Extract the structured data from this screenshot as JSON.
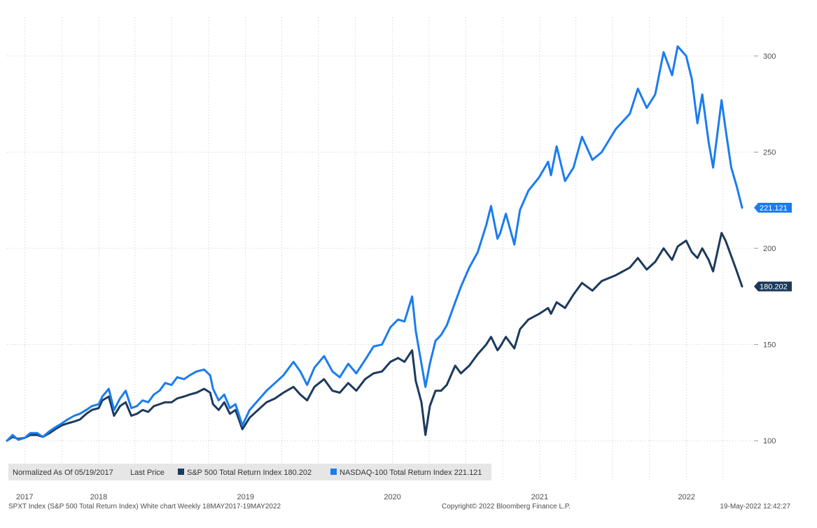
{
  "legend": {
    "normalized_label": "Normalized As Of 05/19/2017",
    "last_price_label": "Last Price",
    "series": [
      {
        "label": "S&P 500 Total Return Index 180.202",
        "color": "#1c3a5c"
      },
      {
        "label": "NASDAQ-100 Total Return Index 221.121",
        "color": "#1a7cf0"
      }
    ]
  },
  "footer": {
    "left": "SPXT Index (S&P 500 Total Return Index) White chart  Weekly 18MAY2017-19MAY2022",
    "center": "Copyright© 2022 Bloomberg Finance L.P.",
    "right": "19-May-2022 12:42:27"
  },
  "chart_data": {
    "type": "line",
    "x_start": "2017-05-18",
    "x_end": "2022-05-19",
    "x_tick_labels": [
      "2017",
      "2018",
      "2019",
      "2020",
      "2021",
      "2022"
    ],
    "x_tick_dates": [
      "2017-07-01",
      "2018-01-01",
      "2019-01-01",
      "2020-01-01",
      "2021-01-01",
      "2022-01-01"
    ],
    "ylim": [
      79,
      320
    ],
    "y_ticks": [
      100,
      150,
      200,
      250,
      300
    ],
    "y_tick_labels": [
      "100",
      "150",
      "200",
      "250",
      "300"
    ],
    "grid": true,
    "series": [
      {
        "name": "S&P 500 Total Return Index",
        "color": "#1c3a5c",
        "last_value_label": "180.202",
        "points": [
          [
            "2017-05-18",
            100
          ],
          [
            "2017-06-01",
            102
          ],
          [
            "2017-06-15",
            101
          ],
          [
            "2017-07-01",
            101.5
          ],
          [
            "2017-07-15",
            103
          ],
          [
            "2017-08-01",
            103
          ],
          [
            "2017-08-15",
            102
          ],
          [
            "2017-09-01",
            104
          ],
          [
            "2017-09-15",
            106
          ],
          [
            "2017-10-01",
            108
          ],
          [
            "2017-10-15",
            109
          ],
          [
            "2017-11-01",
            110
          ],
          [
            "2017-11-15",
            111
          ],
          [
            "2017-12-01",
            114
          ],
          [
            "2017-12-15",
            116
          ],
          [
            "2018-01-01",
            117
          ],
          [
            "2018-01-10",
            121
          ],
          [
            "2018-01-26",
            123
          ],
          [
            "2018-02-08",
            113
          ],
          [
            "2018-02-23",
            118
          ],
          [
            "2018-03-09",
            120
          ],
          [
            "2018-03-23",
            113
          ],
          [
            "2018-04-06",
            114
          ],
          [
            "2018-04-20",
            116
          ],
          [
            "2018-05-04",
            115
          ],
          [
            "2018-05-18",
            118
          ],
          [
            "2018-06-01",
            119
          ],
          [
            "2018-06-15",
            120
          ],
          [
            "2018-07-01",
            120
          ],
          [
            "2018-07-15",
            122
          ],
          [
            "2018-08-01",
            123
          ],
          [
            "2018-08-15",
            124
          ],
          [
            "2018-09-01",
            125
          ],
          [
            "2018-09-20",
            127
          ],
          [
            "2018-10-05",
            125
          ],
          [
            "2018-10-12",
            119
          ],
          [
            "2018-10-26",
            116
          ],
          [
            "2018-11-09",
            120
          ],
          [
            "2018-11-23",
            114
          ],
          [
            "2018-12-07",
            116
          ],
          [
            "2018-12-24",
            106
          ],
          [
            "2019-01-11",
            112
          ],
          [
            "2019-02-01",
            116
          ],
          [
            "2019-02-22",
            120
          ],
          [
            "2019-03-15",
            122
          ],
          [
            "2019-04-05",
            125
          ],
          [
            "2019-04-30",
            128
          ],
          [
            "2019-05-17",
            124
          ],
          [
            "2019-06-03",
            121
          ],
          [
            "2019-06-21",
            128
          ],
          [
            "2019-07-15",
            132
          ],
          [
            "2019-08-05",
            126
          ],
          [
            "2019-08-23",
            125
          ],
          [
            "2019-09-13",
            130
          ],
          [
            "2019-10-03",
            126
          ],
          [
            "2019-10-25",
            132
          ],
          [
            "2019-11-15",
            135
          ],
          [
            "2019-12-06",
            136
          ],
          [
            "2019-12-27",
            141
          ],
          [
            "2020-01-15",
            143
          ],
          [
            "2020-01-31",
            141
          ],
          [
            "2020-02-19",
            147
          ],
          [
            "2020-02-28",
            131
          ],
          [
            "2020-03-13",
            120
          ],
          [
            "2020-03-23",
            103
          ],
          [
            "2020-04-03",
            118
          ],
          [
            "2020-04-17",
            126
          ],
          [
            "2020-05-01",
            126
          ],
          [
            "2020-05-15",
            129
          ],
          [
            "2020-06-05",
            139
          ],
          [
            "2020-06-19",
            135
          ],
          [
            "2020-07-10",
            139
          ],
          [
            "2020-07-31",
            145
          ],
          [
            "2020-08-21",
            150
          ],
          [
            "2020-09-02",
            154
          ],
          [
            "2020-09-18",
            147
          ],
          [
            "2020-09-25",
            149
          ],
          [
            "2020-10-09",
            154
          ],
          [
            "2020-10-30",
            148
          ],
          [
            "2020-11-13",
            158
          ],
          [
            "2020-12-04",
            163
          ],
          [
            "2020-12-31",
            166
          ],
          [
            "2021-01-22",
            169
          ],
          [
            "2021-01-29",
            166
          ],
          [
            "2021-02-12",
            172
          ],
          [
            "2021-03-05",
            169
          ],
          [
            "2021-03-26",
            176
          ],
          [
            "2021-04-16",
            182
          ],
          [
            "2021-05-12",
            178
          ],
          [
            "2021-06-04",
            183
          ],
          [
            "2021-07-09",
            186
          ],
          [
            "2021-08-13",
            190
          ],
          [
            "2021-09-02",
            195
          ],
          [
            "2021-09-24",
            189
          ],
          [
            "2021-10-15",
            193
          ],
          [
            "2021-11-05",
            200
          ],
          [
            "2021-11-26",
            194
          ],
          [
            "2021-12-10",
            201
          ],
          [
            "2021-12-31",
            204
          ],
          [
            "2022-01-14",
            198
          ],
          [
            "2022-01-28",
            195
          ],
          [
            "2022-02-09",
            200
          ],
          [
            "2022-02-25",
            194
          ],
          [
            "2022-03-08",
            188
          ],
          [
            "2022-03-29",
            208
          ],
          [
            "2022-04-08",
            204
          ],
          [
            "2022-04-22",
            196
          ],
          [
            "2022-05-06",
            188
          ],
          [
            "2022-05-19",
            180.202
          ]
        ]
      },
      {
        "name": "NASDAQ-100 Total Return Index",
        "color": "#1a7cf0",
        "last_value_label": "221.121",
        "points": [
          [
            "2017-05-18",
            100
          ],
          [
            "2017-06-01",
            103
          ],
          [
            "2017-06-15",
            100.5
          ],
          [
            "2017-07-01",
            101.5
          ],
          [
            "2017-07-15",
            104
          ],
          [
            "2017-08-01",
            104
          ],
          [
            "2017-08-15",
            102
          ],
          [
            "2017-09-01",
            105
          ],
          [
            "2017-09-15",
            107
          ],
          [
            "2017-10-01",
            109
          ],
          [
            "2017-10-15",
            111
          ],
          [
            "2017-11-01",
            113
          ],
          [
            "2017-11-15",
            114
          ],
          [
            "2017-12-01",
            116
          ],
          [
            "2017-12-15",
            118
          ],
          [
            "2018-01-01",
            119
          ],
          [
            "2018-01-10",
            123
          ],
          [
            "2018-01-26",
            127
          ],
          [
            "2018-02-08",
            116
          ],
          [
            "2018-02-23",
            122
          ],
          [
            "2018-03-09",
            126
          ],
          [
            "2018-03-23",
            117
          ],
          [
            "2018-04-06",
            118
          ],
          [
            "2018-04-20",
            121
          ],
          [
            "2018-05-04",
            120
          ],
          [
            "2018-05-18",
            124
          ],
          [
            "2018-06-01",
            126
          ],
          [
            "2018-06-15",
            130
          ],
          [
            "2018-07-01",
            129
          ],
          [
            "2018-07-15",
            133
          ],
          [
            "2018-08-01",
            132
          ],
          [
            "2018-08-15",
            134
          ],
          [
            "2018-09-01",
            136
          ],
          [
            "2018-09-20",
            137
          ],
          [
            "2018-10-05",
            134
          ],
          [
            "2018-10-12",
            127
          ],
          [
            "2018-10-26",
            121
          ],
          [
            "2018-11-09",
            124
          ],
          [
            "2018-11-23",
            117
          ],
          [
            "2018-12-07",
            119
          ],
          [
            "2018-12-24",
            108
          ],
          [
            "2019-01-11",
            116
          ],
          [
            "2019-02-01",
            121
          ],
          [
            "2019-02-22",
            126
          ],
          [
            "2019-03-15",
            130
          ],
          [
            "2019-04-05",
            134
          ],
          [
            "2019-04-30",
            141
          ],
          [
            "2019-05-17",
            136
          ],
          [
            "2019-06-03",
            129
          ],
          [
            "2019-06-21",
            138
          ],
          [
            "2019-07-15",
            144
          ],
          [
            "2019-08-05",
            136
          ],
          [
            "2019-08-23",
            133
          ],
          [
            "2019-09-13",
            140
          ],
          [
            "2019-10-03",
            135
          ],
          [
            "2019-10-25",
            142
          ],
          [
            "2019-11-15",
            149
          ],
          [
            "2019-12-06",
            150
          ],
          [
            "2019-12-27",
            159
          ],
          [
            "2020-01-15",
            163
          ],
          [
            "2020-01-31",
            162
          ],
          [
            "2020-02-19",
            175
          ],
          [
            "2020-02-28",
            157
          ],
          [
            "2020-03-13",
            140
          ],
          [
            "2020-03-23",
            128
          ],
          [
            "2020-04-03",
            140
          ],
          [
            "2020-04-17",
            152
          ],
          [
            "2020-05-01",
            155
          ],
          [
            "2020-05-15",
            160
          ],
          [
            "2020-06-05",
            172
          ],
          [
            "2020-06-19",
            180
          ],
          [
            "2020-07-10",
            190
          ],
          [
            "2020-07-31",
            198
          ],
          [
            "2020-08-21",
            212
          ],
          [
            "2020-09-02",
            222
          ],
          [
            "2020-09-18",
            205
          ],
          [
            "2020-09-25",
            208
          ],
          [
            "2020-10-09",
            218
          ],
          [
            "2020-10-30",
            202
          ],
          [
            "2020-11-13",
            220
          ],
          [
            "2020-12-04",
            230
          ],
          [
            "2020-12-31",
            237
          ],
          [
            "2021-01-22",
            245
          ],
          [
            "2021-01-29",
            238
          ],
          [
            "2021-02-12",
            253
          ],
          [
            "2021-03-05",
            235
          ],
          [
            "2021-03-26",
            242
          ],
          [
            "2021-04-16",
            258
          ],
          [
            "2021-05-12",
            246
          ],
          [
            "2021-06-04",
            250
          ],
          [
            "2021-07-09",
            262
          ],
          [
            "2021-08-13",
            270
          ],
          [
            "2021-09-02",
            283
          ],
          [
            "2021-09-24",
            273
          ],
          [
            "2021-10-15",
            280
          ],
          [
            "2021-11-05",
            302
          ],
          [
            "2021-11-26",
            290
          ],
          [
            "2021-12-10",
            305
          ],
          [
            "2021-12-31",
            300
          ],
          [
            "2022-01-14",
            288
          ],
          [
            "2022-01-28",
            265
          ],
          [
            "2022-02-09",
            280
          ],
          [
            "2022-02-25",
            255
          ],
          [
            "2022-03-08",
            242
          ],
          [
            "2022-03-29",
            277
          ],
          [
            "2022-04-08",
            262
          ],
          [
            "2022-04-22",
            242
          ],
          [
            "2022-05-06",
            232
          ],
          [
            "2022-05-19",
            221.121
          ]
        ]
      }
    ]
  }
}
